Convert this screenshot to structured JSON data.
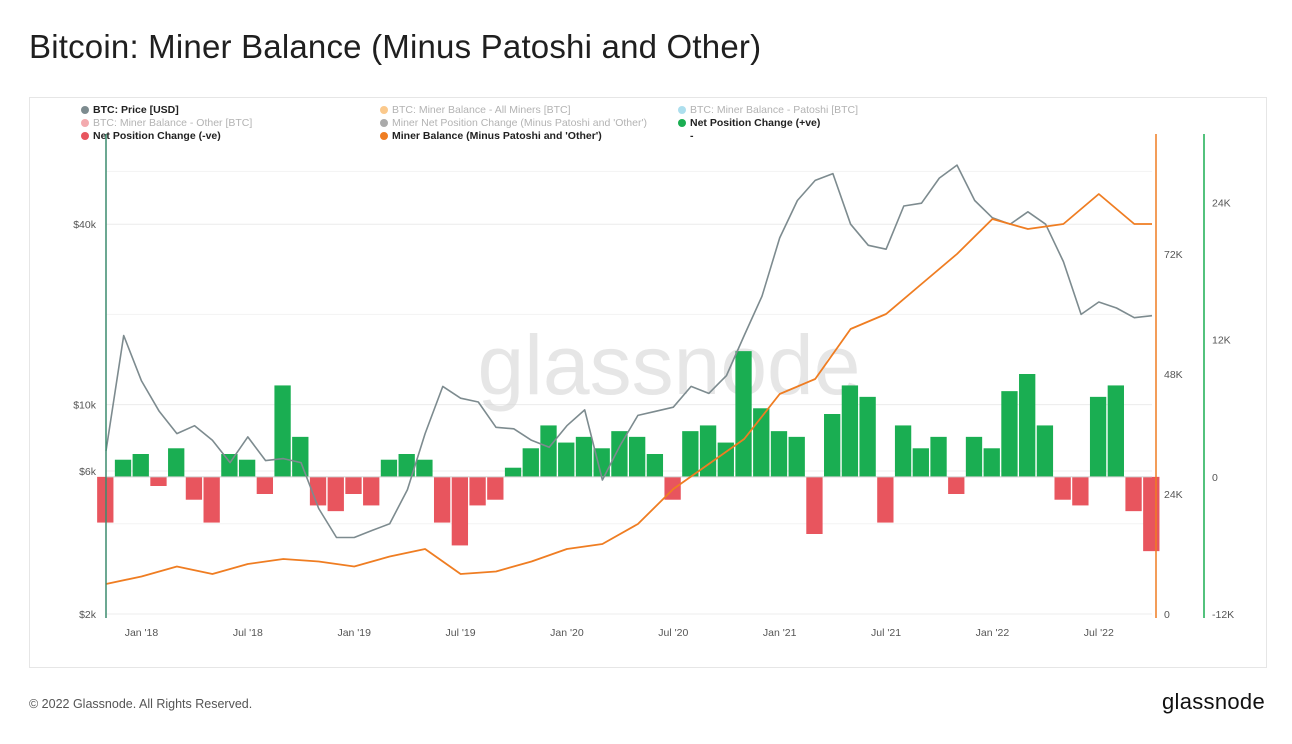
{
  "title": "Bitcoin: Miner Balance (Minus Patoshi and Other)",
  "footer": {
    "copyright": "© 2022 Glassnode. All Rights Reserved.",
    "logo": "glassnode"
  },
  "watermark": "glassnode",
  "legend": [
    {
      "label": "BTC: Price [USD]",
      "color": "#7d8b8f",
      "active": true
    },
    {
      "label": "BTC: Miner Balance - All Miners [BTC]",
      "color": "#f7931a",
      "active": false
    },
    {
      "label": "BTC: Miner Balance - Patoshi [BTC]",
      "color": "#5bc0de",
      "active": false
    },
    {
      "label": "BTC: Miner Balance - Other [BTC]",
      "color": "#e8555e",
      "active": false
    },
    {
      "label": "Miner Net Position Change (Minus Patoshi and 'Other')",
      "color": "#555555",
      "active": false
    },
    {
      "label": "Net Position Change (+ve)",
      "color": "#1aae52",
      "active": true
    },
    {
      "label": "Net Position Change (-ve)",
      "color": "#e8555e",
      "active": true
    },
    {
      "label": "Miner Balance (Minus Patoshi and 'Other')",
      "color": "#ef7d22",
      "active": true
    },
    {
      "label": "-",
      "color": "",
      "active": true
    }
  ],
  "chart_data": {
    "type": "line",
    "x_ticks": [
      "Jan '18",
      "Jul '18",
      "Jan '19",
      "Jul '19",
      "Jan '20",
      "Jul '20",
      "Jan '21",
      "Jul '21",
      "Jan '22",
      "Jul '22"
    ],
    "y_left": {
      "ticks": [
        "$2k",
        "$6k",
        "$10k",
        "$40k"
      ],
      "scale": "log"
    },
    "y_right_balance": {
      "ticks": [
        "0",
        "24K",
        "48K",
        "72K"
      ],
      "range": [
        0,
        96000
      ]
    },
    "y_right_change": {
      "ticks": [
        "-12K",
        "0",
        "12K",
        "24K"
      ],
      "range": [
        -12000,
        30000
      ]
    },
    "x_range": [
      "2017-11",
      "2022-10"
    ],
    "series": [
      {
        "name": "BTC: Price [USD]",
        "color": "#7d8b8f",
        "axis": "left",
        "x": [
          "2017-11",
          "2017-12",
          "2018-01",
          "2018-02",
          "2018-03",
          "2018-04",
          "2018-05",
          "2018-06",
          "2018-07",
          "2018-08",
          "2018-09",
          "2018-10",
          "2018-11",
          "2018-12",
          "2019-01",
          "2019-02",
          "2019-03",
          "2019-04",
          "2019-05",
          "2019-06",
          "2019-07",
          "2019-08",
          "2019-09",
          "2019-10",
          "2019-11",
          "2019-12",
          "2020-01",
          "2020-02",
          "2020-03",
          "2020-04",
          "2020-05",
          "2020-06",
          "2020-07",
          "2020-08",
          "2020-09",
          "2020-10",
          "2020-11",
          "2020-12",
          "2021-01",
          "2021-02",
          "2021-03",
          "2021-04",
          "2021-05",
          "2021-06",
          "2021-07",
          "2021-08",
          "2021-09",
          "2021-10",
          "2021-11",
          "2021-12",
          "2022-01",
          "2022-02",
          "2022-03",
          "2022-04",
          "2022-05",
          "2022-06",
          "2022-07",
          "2022-08",
          "2022-09",
          "2022-10"
        ],
        "values": [
          7000,
          17000,
          12000,
          9500,
          8000,
          8500,
          7600,
          6400,
          7800,
          6500,
          6600,
          6400,
          4500,
          3600,
          3600,
          3800,
          4000,
          5200,
          8000,
          11500,
          10500,
          10200,
          8400,
          8300,
          7600,
          7200,
          8500,
          9600,
          5600,
          7300,
          9200,
          9500,
          9800,
          11500,
          10900,
          12500,
          17000,
          23000,
          36000,
          48000,
          56000,
          59000,
          40000,
          34000,
          33000,
          46000,
          47000,
          57000,
          63000,
          48000,
          42000,
          40000,
          44000,
          40000,
          30000,
          20000,
          22000,
          21000,
          19500,
          19800
        ]
      },
      {
        "name": "Miner Balance (Minus Patoshi and 'Other')",
        "color": "#ef7d22",
        "axis": "right_balance",
        "x": [
          "2017-11",
          "2018-01",
          "2018-03",
          "2018-05",
          "2018-07",
          "2018-09",
          "2018-11",
          "2019-01",
          "2019-03",
          "2019-05",
          "2019-07",
          "2019-09",
          "2019-11",
          "2020-01",
          "2020-03",
          "2020-05",
          "2020-07",
          "2020-09",
          "2020-11",
          "2021-01",
          "2021-03",
          "2021-05",
          "2021-07",
          "2021-09",
          "2021-11",
          "2022-01",
          "2022-03",
          "2022-05",
          "2022-07",
          "2022-09",
          "2022-10"
        ],
        "values": [
          6000,
          7500,
          9500,
          8000,
          10000,
          11000,
          10500,
          9500,
          11500,
          13000,
          8000,
          8500,
          10500,
          13000,
          14000,
          18000,
          25000,
          30000,
          35000,
          44000,
          47000,
          57000,
          60000,
          66000,
          72000,
          79000,
          77000,
          78000,
          84000,
          78000,
          78000
        ]
      },
      {
        "name": "Net Position Change",
        "color_positive": "#1aae52",
        "color_negative": "#e8555e",
        "axis": "right_change",
        "x": [
          "2017-11",
          "2017-12",
          "2018-01",
          "2018-02",
          "2018-03",
          "2018-04",
          "2018-05",
          "2018-06",
          "2018-07",
          "2018-08",
          "2018-09",
          "2018-10",
          "2018-11",
          "2018-12",
          "2019-01",
          "2019-02",
          "2019-03",
          "2019-04",
          "2019-05",
          "2019-06",
          "2019-07",
          "2019-08",
          "2019-09",
          "2019-10",
          "2019-11",
          "2019-12",
          "2020-01",
          "2020-02",
          "2020-03",
          "2020-04",
          "2020-05",
          "2020-06",
          "2020-07",
          "2020-08",
          "2020-09",
          "2020-10",
          "2020-11",
          "2020-12",
          "2021-01",
          "2021-02",
          "2021-03",
          "2021-04",
          "2021-05",
          "2021-06",
          "2021-07",
          "2021-08",
          "2021-09",
          "2021-10",
          "2021-11",
          "2021-12",
          "2022-01",
          "2022-02",
          "2022-03",
          "2022-04",
          "2022-05",
          "2022-06",
          "2022-07",
          "2022-08",
          "2022-09",
          "2022-10"
        ],
        "values": [
          -4000,
          1500,
          2000,
          -800,
          2500,
          -2000,
          -4000,
          2000,
          1500,
          -1500,
          8000,
          3500,
          -2500,
          -3000,
          -1500,
          -2500,
          1500,
          2000,
          1500,
          -4000,
          -6000,
          -2500,
          -2000,
          800,
          2500,
          4500,
          3000,
          3500,
          2500,
          4000,
          3500,
          2000,
          -2000,
          4000,
          4500,
          3000,
          11000,
          6000,
          4000,
          3500,
          -5000,
          5500,
          8000,
          7000,
          -4000,
          4500,
          2500,
          3500,
          -1500,
          3500,
          2500,
          7500,
          9000,
          4500,
          -2000,
          -2500,
          7000,
          8000,
          -3000,
          -6500
        ]
      }
    ]
  }
}
